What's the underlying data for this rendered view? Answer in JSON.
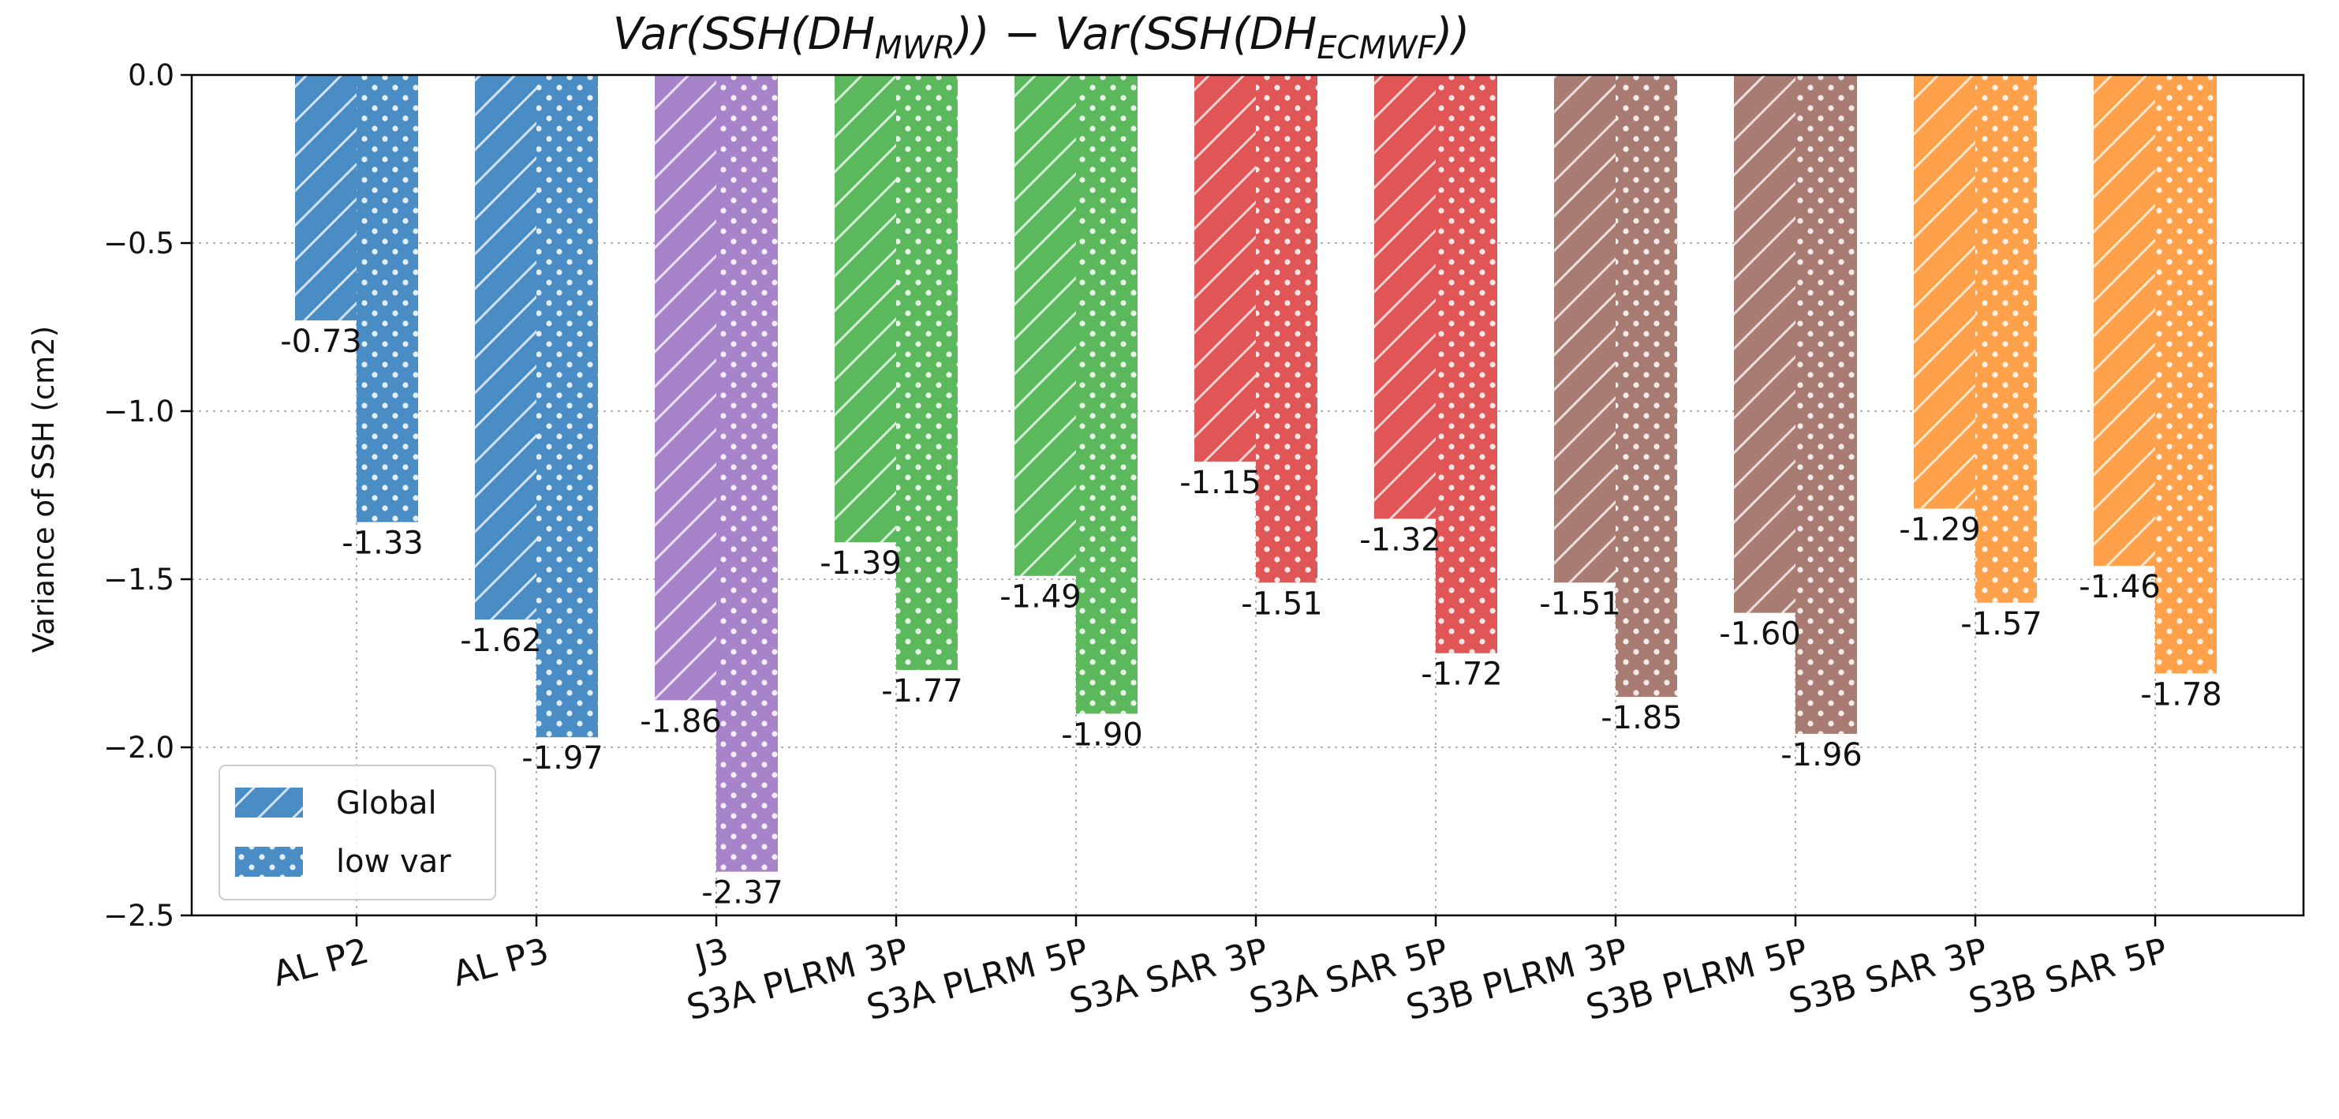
{
  "chart_data": {
    "type": "bar",
    "title_parts": [
      "Var(SSH(DH",
      "MWR",
      ")) − Var(SSH(DH",
      "ECMWF",
      "))"
    ],
    "ylabel": "Variance of SSH (cm2)",
    "xlabel": "",
    "ylim": [
      -2.5,
      0.0
    ],
    "yticks": [
      0.0,
      -0.5,
      -1.0,
      -1.5,
      -2.0,
      -2.5
    ],
    "ytick_labels": [
      "0.0",
      "−0.5",
      "−1.0",
      "−1.5",
      "−2.0",
      "−2.5"
    ],
    "grid": true,
    "legend_position": "lower-left",
    "categories": [
      "AL P2",
      "AL P3",
      "J3",
      "S3A PLRM 3P",
      "S3A PLRM 5P",
      "S3A SAR 3P",
      "S3A SAR 5P",
      "S3B PLRM 3P",
      "S3B PLRM 5P",
      "S3B SAR 3P",
      "S3B SAR 5P"
    ],
    "category_colors": [
      "#4a8cc4",
      "#4a8cc4",
      "#a783c9",
      "#5cb85c",
      "#5cb85c",
      "#e05555",
      "#e05555",
      "#a97c73",
      "#a97c73",
      "#ffa04a",
      "#ffa04a"
    ],
    "series": [
      {
        "name": "Global",
        "pattern": "hatch",
        "values": [
          -0.73,
          -1.62,
          -1.86,
          -1.39,
          -1.49,
          -1.15,
          -1.32,
          -1.51,
          -1.6,
          -1.29,
          -1.46
        ],
        "labels": [
          "-0.73",
          "-1.62",
          "-1.86",
          "-1.39",
          "-1.49",
          "-1.15",
          "-1.32",
          "-1.51",
          "-1.60",
          "-1.29",
          "-1.46"
        ]
      },
      {
        "name": "low var",
        "pattern": "dots",
        "values": [
          -1.33,
          -1.97,
          -2.37,
          -1.77,
          -1.9,
          -1.51,
          -1.72,
          -1.85,
          -1.96,
          -1.57,
          -1.78
        ],
        "labels": [
          "-1.33",
          "-1.97",
          "-2.37",
          "-1.77",
          "-1.90",
          "-1.51",
          "-1.72",
          "-1.85",
          "-1.96",
          "-1.57",
          "-1.78"
        ]
      }
    ]
  }
}
